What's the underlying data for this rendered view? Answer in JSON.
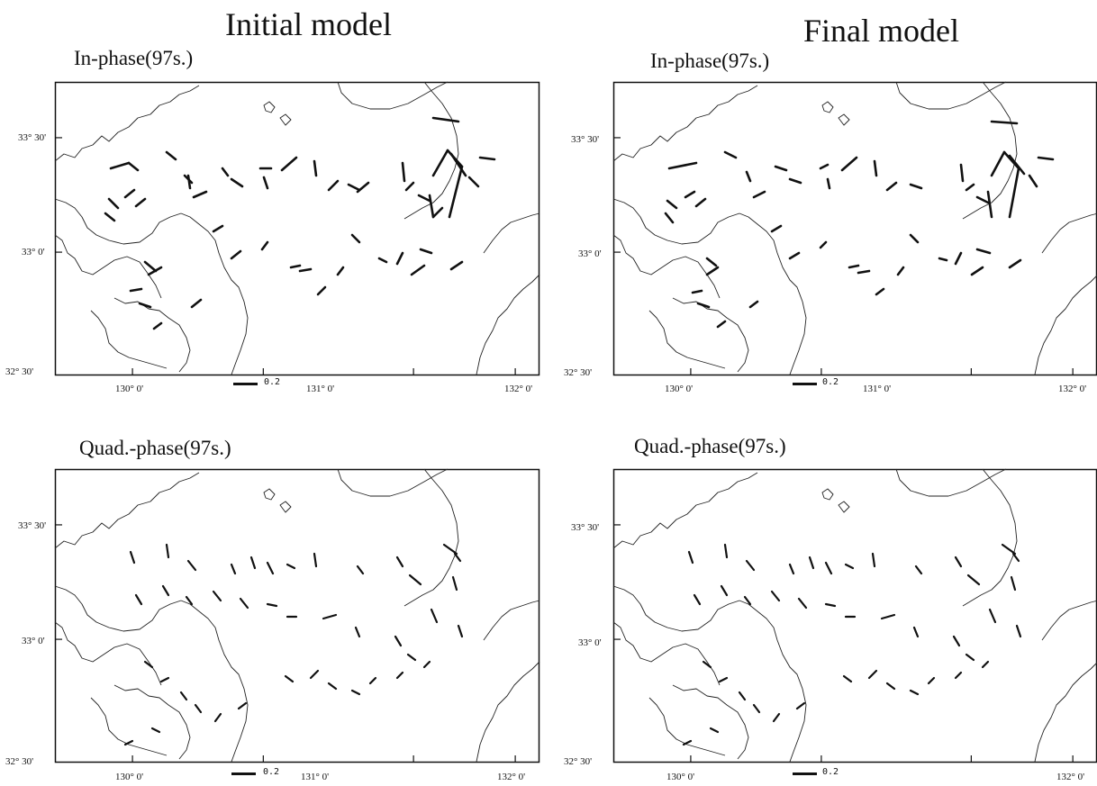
{
  "columns": {
    "left_title": "Initial model",
    "right_title": "Final model"
  },
  "panels": [
    {
      "id": "initial-inphase",
      "title": "In-phase(97s.)",
      "model": "initial",
      "component": "in-phase"
    },
    {
      "id": "final-inphase",
      "title": "In-phase(97s.)",
      "model": "final",
      "component": "in-phase"
    },
    {
      "id": "initial-quad",
      "title": "Quad.-phase(97s.)",
      "model": "initial",
      "component": "quadrature"
    },
    {
      "id": "final-quad",
      "title": "Quad.-phase(97s.)",
      "model": "final",
      "component": "quadrature"
    }
  ],
  "axes": {
    "lat_ticks": [
      "33° 30'",
      "33° 0'",
      "32° 30'"
    ],
    "lon_ticks": [
      "130° 0'",
      "131° 0'",
      "132° 0'"
    ]
  },
  "scale": {
    "label": "0.2"
  },
  "colors": {
    "ink": "#111111",
    "coast": "#222222",
    "background": "#ffffff"
  }
}
